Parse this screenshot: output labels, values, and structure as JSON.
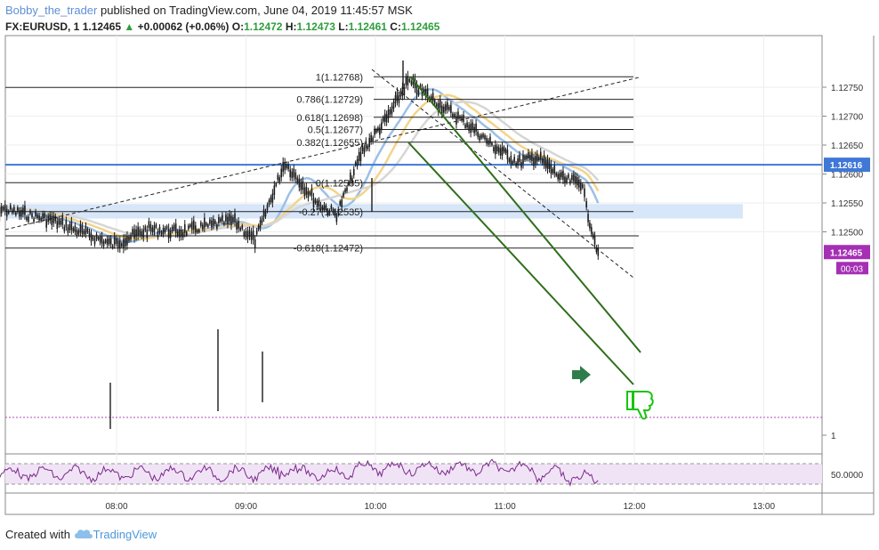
{
  "header": {
    "user": "Bobby_the_trader",
    "published": "published on TradingView.com, June 04, 2019 11:45:57 MSK"
  },
  "symbol_line": {
    "symbol": "FX:EURUSD, 1",
    "last": "1.12465",
    "arrow": "▲",
    "change": "+0.00062 (+0.06%)",
    "open_label": "O:",
    "open": "1.12472",
    "high_label": "H:",
    "high": "1.12473",
    "low_label": "L:",
    "low": "1.12461",
    "close_label": "C:",
    "close": "1.12465"
  },
  "footer": {
    "created_with": "Created with",
    "brand": "TradingView"
  },
  "colors": {
    "candle": "#1a1a1a",
    "ema_blue": "#9cc0e8",
    "ema_yellow": "#f3d48c",
    "ema_gray": "#d6d6d6",
    "hline_blue": "#3f78d6",
    "zone": "#d7e6f8",
    "channel": "#2f6e1a",
    "rsi": "#7a2a8a",
    "rsi_band": "#f1e3f6",
    "price_badge": "#a52fb5",
    "arrow": "#2f7d4a",
    "thumb": "#19c40e"
  },
  "icons": {
    "signal_arrow": "arrow-right-icon",
    "thumb": "thumbs-down-icon",
    "logo": "tradingview-cloud-icon"
  },
  "chart_data": {
    "type": "line",
    "title": "",
    "price_axis": {
      "ticks": [
        "1.12750",
        "1.12700",
        "1.12650",
        "1.12600",
        "1.12550",
        "1.12500",
        "1"
      ]
    },
    "time_axis": {
      "ticks": [
        "08:00",
        "09:00",
        "10:00",
        "11:00",
        "12:00",
        "13:00"
      ]
    },
    "fib_levels": [
      {
        "label": "1(1.12768)",
        "value": 1.12768
      },
      {
        "label": "0.786(1.12729)",
        "value": 1.12729
      },
      {
        "label": "0.618(1.12698)",
        "value": 1.12698
      },
      {
        "label": "0.5(1.12677)",
        "value": 1.12677
      },
      {
        "label": "0.382(1.12655)",
        "value": 1.12655
      },
      {
        "label": "0(1.12585)",
        "value": 1.12585
      },
      {
        "label": "-0.27(1.12535)",
        "value": 1.12535
      },
      {
        "label": "-0.618(1.12472)",
        "value": 1.12472
      }
    ],
    "support_line": {
      "value": 1.12616,
      "label": "1.12616"
    },
    "last_price": {
      "value": 1.12465,
      "label": "1.12465",
      "countdown": "00:03"
    },
    "demand_zone": [
      1.12523,
      1.12548
    ],
    "series": [
      {
        "x": [
          7.0,
          7.5,
          7.97,
          8.25,
          8.5,
          8.9,
          9.07,
          9.3,
          9.55,
          9.7,
          9.9,
          10.1,
          10.25,
          10.5,
          10.75,
          10.9,
          11.1,
          11.25,
          11.45,
          11.6,
          11.63,
          11.72
        ],
        "values": [
          1.12545,
          1.1252,
          1.12478,
          1.12505,
          1.125,
          1.1252,
          1.12485,
          1.1262,
          1.1255,
          1.1253,
          1.1264,
          1.127,
          1.1276,
          1.1272,
          1.1268,
          1.1265,
          1.1262,
          1.1263,
          1.1259,
          1.12585,
          1.1254,
          1.12465
        ]
      }
    ],
    "rsi": {
      "ticks": [
        "50.0000"
      ],
      "value": 50.0
    }
  }
}
